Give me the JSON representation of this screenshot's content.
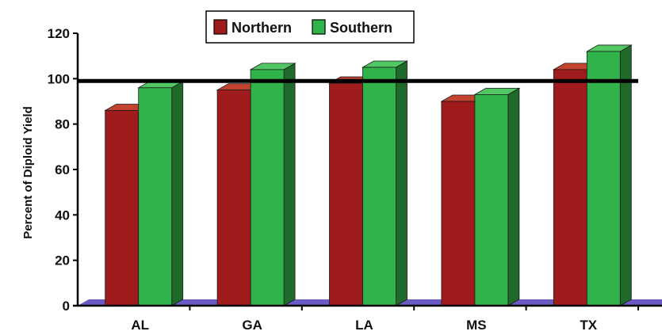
{
  "chart_data": {
    "type": "bar",
    "title": "",
    "xlabel": "",
    "ylabel": "Percent of Diploid Yield",
    "categories": [
      "AL",
      "GA",
      "LA",
      "MS",
      "TX"
    ],
    "series": [
      {
        "name": "Northern",
        "values": [
          86,
          95,
          98,
          90,
          104
        ]
      },
      {
        "name": "Southern",
        "values": [
          96,
          104,
          105,
          93,
          112
        ]
      }
    ],
    "ylim": [
      0,
      120
    ],
    "yticks": [
      0,
      20,
      40,
      60,
      80,
      100,
      120
    ],
    "reference_line": 99,
    "legend_position": "top-center",
    "colors": {
      "Northern": {
        "front": "#a01c1c",
        "top": "#c4432f",
        "side": "#6a0e0e"
      },
      "Southern": {
        "front": "#2fb34a",
        "top": "#52c864",
        "side": "#1f6a2a"
      },
      "floor": "#6a5bc4",
      "reference_line": "#000000"
    }
  }
}
